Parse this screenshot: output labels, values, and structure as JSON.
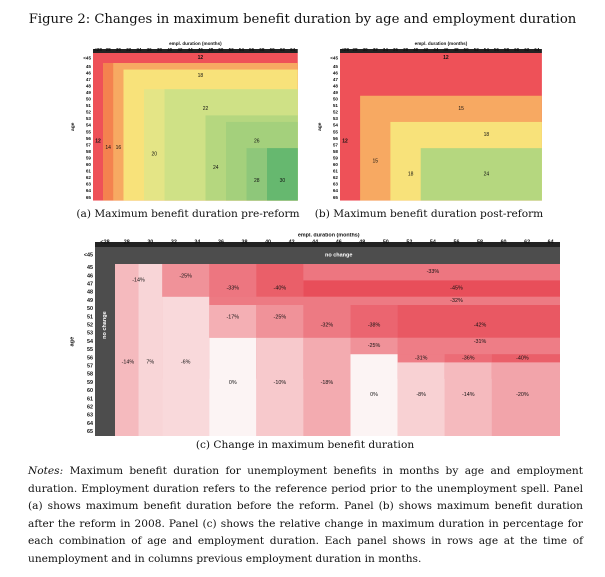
{
  "figure_title": "Figure 2: Changes in maximum benefit duration by age and employment duration",
  "captions": {
    "a": "(a) Maximum benefit duration pre-reform",
    "b": "(b) Maximum benefit duration post-reform",
    "c": "(c) Change in maximum benefit duration"
  },
  "notes": {
    "label": "Notes:",
    "text": "Maximum benefit duration for unemployment benefits in months by age and employment duration. Employment duration refers to the reference period prior to the unemployment spell. Panel (a) shows maximum benefit duration before the reform. Panel (b) shows maximum benefit duration after the reform in 2008. Panel (c) shows the relative change in maximum duration in percentage for each combination of age and employment duration. Each panel shows in rows age at the time of unemployment and in columns previous employment duration in months."
  },
  "chart_data": [
    {
      "type": "heatmap",
      "panel": "a",
      "xlabel": "empl. duration (months)",
      "ylabel": "age",
      "x_categories": [
        "<28",
        "28",
        "30",
        "32",
        "34",
        "36",
        "38",
        "40",
        "42",
        "44",
        "46",
        "48",
        "50",
        "52",
        "54",
        "56",
        "58",
        "60",
        "62",
        "64"
      ],
      "y_categories": [
        "<45",
        "45",
        "46",
        "47",
        "48",
        "49",
        "50",
        "51",
        "52",
        "53",
        "54",
        "55",
        "56",
        "57",
        "58",
        "59",
        "60",
        "61",
        "62",
        "63",
        "64",
        "65"
      ],
      "regions": [
        {
          "value": "12",
          "color": "#ee5158"
        },
        {
          "value": "14",
          "color": "#f4824f"
        },
        {
          "value": "16",
          "color": "#f7a962"
        },
        {
          "value": "18",
          "color": "#f8e27a"
        },
        {
          "value": "20",
          "color": "#e4e586"
        },
        {
          "value": "22",
          "color": "#cfe186"
        },
        {
          "value": "24",
          "color": "#b5d77f"
        },
        {
          "value": "26",
          "color": "#a4d07c"
        },
        {
          "value": "28",
          "color": "#8ec77a"
        },
        {
          "value": "30",
          "color": "#66b86f"
        }
      ]
    },
    {
      "type": "heatmap",
      "panel": "b",
      "xlabel": "empl. duration (months)",
      "ylabel": "age",
      "x_categories": [
        "<28",
        "28",
        "30",
        "32",
        "34",
        "36",
        "38",
        "40",
        "42",
        "44",
        "46",
        "48",
        "50",
        "52",
        "54",
        "56",
        "58",
        "60",
        "62",
        "64"
      ],
      "y_categories": [
        "<45",
        "45",
        "46",
        "47",
        "48",
        "49",
        "50",
        "51",
        "52",
        "53",
        "54",
        "55",
        "56",
        "57",
        "58",
        "59",
        "60",
        "61",
        "62",
        "63",
        "64",
        "65"
      ],
      "regions": [
        {
          "value": "12",
          "color": "#ee5158"
        },
        {
          "value": "15",
          "color": "#f7a962"
        },
        {
          "value": "18",
          "color": "#f8e27a"
        },
        {
          "value": "24",
          "color": "#b5d77f"
        }
      ]
    },
    {
      "type": "heatmap",
      "panel": "c",
      "xlabel": "empl. duration (months)",
      "ylabel": "age",
      "x_categories": [
        "<28",
        "28",
        "30",
        "32",
        "34",
        "36",
        "38",
        "40",
        "42",
        "44",
        "46",
        "48",
        "50",
        "52",
        "54",
        "56",
        "58",
        "60",
        "62",
        "64"
      ],
      "y_categories": [
        "<45",
        "45",
        "46",
        "47",
        "48",
        "49",
        "50",
        "51",
        "52",
        "53",
        "54",
        "55",
        "56",
        "57",
        "58",
        "59",
        "60",
        "61",
        "62",
        "63",
        "64",
        "65"
      ],
      "no_change_label": "no change",
      "cells": [
        {
          "label": "-14%",
          "value": -14
        },
        {
          "label": "-25%",
          "value": -25
        },
        {
          "label": "-33%",
          "value": -33
        },
        {
          "label": "-40%",
          "value": -40
        },
        {
          "label": "-33%",
          "value": -33
        },
        {
          "label": "-45%",
          "value": -45
        },
        {
          "label": "-32%",
          "value": -32
        },
        {
          "label": "-17%",
          "value": -17
        },
        {
          "label": "-25%",
          "value": -25
        },
        {
          "label": "-32%",
          "value": -32
        },
        {
          "label": "-38%",
          "value": -38
        },
        {
          "label": "-42%",
          "value": -42
        },
        {
          "label": "-31%",
          "value": -31
        },
        {
          "label": "-25%",
          "value": -25
        },
        {
          "label": "-14%",
          "value": -14
        },
        {
          "label": "7%",
          "value": 7
        },
        {
          "label": "-6%",
          "value": -6
        },
        {
          "label": "-31%",
          "value": -31
        },
        {
          "label": "-36%",
          "value": -36
        },
        {
          "label": "-40%",
          "value": -40
        },
        {
          "label": "0%",
          "value": 0
        },
        {
          "label": "-10%",
          "value": -10
        },
        {
          "label": "-18%",
          "value": -18
        },
        {
          "label": "0%",
          "value": 0
        },
        {
          "label": "-8%",
          "value": -8
        },
        {
          "label": "-14%",
          "value": -14
        },
        {
          "label": "-20%",
          "value": -20
        }
      ]
    }
  ]
}
